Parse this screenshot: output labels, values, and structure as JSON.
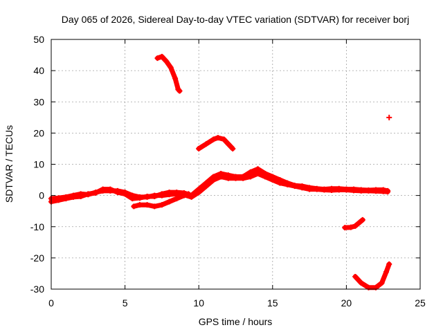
{
  "chart_data": {
    "type": "scatter",
    "title": "Day 065 of 2026, Sidereal Day-to-day VTEC variation (SDTVAR) for receiver borj",
    "xlabel": "GPS time / hours",
    "ylabel": "SDTVAR / TECUs",
    "xlim": [
      0,
      25
    ],
    "ylim": [
      -30,
      50
    ],
    "xticks": [
      "0",
      "5",
      "10",
      "15",
      "20",
      "25"
    ],
    "yticks": [
      "-30",
      "-20",
      "-10",
      "0",
      "10",
      "20",
      "30",
      "40",
      "50"
    ],
    "grid": true,
    "marker_color": "#ff0000",
    "marker": "plus",
    "series": [
      {
        "name": "main-band-a",
        "points": [
          [
            0,
            -1
          ],
          [
            0.5,
            -0.8
          ],
          [
            1,
            -0.5
          ],
          [
            1.5,
            0
          ],
          [
            2,
            0.5
          ],
          [
            2.5,
            0.3
          ],
          [
            3,
            1
          ],
          [
            3.5,
            1.5
          ],
          [
            4,
            1.5
          ],
          [
            4.5,
            1.5
          ],
          [
            5,
            1
          ],
          [
            5.5,
            0
          ],
          [
            6,
            -0.5
          ],
          [
            6.5,
            -0.5
          ],
          [
            7,
            0
          ],
          [
            7.5,
            0
          ],
          [
            8,
            0.3
          ],
          [
            8.5,
            0.5
          ],
          [
            9,
            0.2
          ],
          [
            9.5,
            -0.5
          ],
          [
            10,
            1
          ],
          [
            10.5,
            3
          ],
          [
            11,
            5
          ],
          [
            11.5,
            6
          ],
          [
            12,
            5.5
          ],
          [
            12.5,
            5.5
          ],
          [
            13,
            5.5
          ],
          [
            13.5,
            6
          ],
          [
            14,
            7
          ],
          [
            14.5,
            6
          ],
          [
            15,
            5
          ],
          [
            15.5,
            4
          ],
          [
            16,
            3.5
          ],
          [
            16.5,
            3
          ],
          [
            17,
            2.5
          ],
          [
            17.5,
            2
          ],
          [
            18,
            2
          ],
          [
            18.5,
            1.8
          ],
          [
            19,
            1.7
          ],
          [
            19.5,
            1.8
          ],
          [
            20,
            1.8
          ],
          [
            20.5,
            1.6
          ],
          [
            21,
            1.5
          ],
          [
            21.5,
            1.5
          ],
          [
            22,
            1.4
          ],
          [
            22.5,
            1.3
          ],
          [
            22.8,
            1.2
          ]
        ]
      },
      {
        "name": "main-band-b",
        "points": [
          [
            0,
            -2
          ],
          [
            0.5,
            -1.5
          ],
          [
            1,
            -1
          ],
          [
            1.5,
            -0.5
          ],
          [
            2,
            -0.3
          ],
          [
            2.5,
            0.5
          ],
          [
            3,
            0.8
          ],
          [
            3.5,
            2
          ],
          [
            4,
            2
          ],
          [
            4.5,
            1
          ],
          [
            5,
            0.5
          ],
          [
            5.5,
            -1
          ],
          [
            6,
            -0.8
          ],
          [
            6.5,
            -0.3
          ],
          [
            7,
            -0.3
          ],
          [
            7.5,
            0.5
          ],
          [
            8,
            1
          ],
          [
            8.5,
            1
          ],
          [
            9,
            0.8
          ],
          [
            9.5,
            0
          ],
          [
            10,
            2
          ],
          [
            10.5,
            4
          ],
          [
            11,
            6
          ],
          [
            11.5,
            7
          ],
          [
            12,
            6.5
          ],
          [
            12.5,
            6
          ],
          [
            13,
            6
          ],
          [
            13.5,
            7.5
          ],
          [
            14,
            8.5
          ],
          [
            14.5,
            7
          ],
          [
            15,
            6
          ],
          [
            15.5,
            5
          ],
          [
            16,
            4
          ],
          [
            16.5,
            3.2
          ],
          [
            17,
            3
          ],
          [
            17.5,
            2.5
          ],
          [
            18,
            2.2
          ],
          [
            18.5,
            2
          ],
          [
            19,
            2.2
          ],
          [
            19.5,
            2.2
          ],
          [
            20,
            2
          ],
          [
            20.5,
            2
          ],
          [
            21,
            1.8
          ],
          [
            21.5,
            1.7
          ],
          [
            22,
            1.8
          ],
          [
            22.5,
            1.8
          ],
          [
            22.8,
            1.5
          ]
        ]
      },
      {
        "name": "dip-arc",
        "points": [
          [
            5.6,
            -3.5
          ],
          [
            6,
            -3
          ],
          [
            6.5,
            -3
          ],
          [
            7,
            -3.5
          ],
          [
            7.5,
            -3
          ],
          [
            8,
            -2
          ],
          [
            8.5,
            -1
          ],
          [
            9,
            0
          ],
          [
            9.3,
            0.5
          ]
        ]
      },
      {
        "name": "high-arc",
        "points": [
          [
            7.2,
            44
          ],
          [
            7.5,
            44.5
          ],
          [
            7.8,
            43
          ],
          [
            8.1,
            41
          ],
          [
            8.4,
            37.5
          ],
          [
            8.6,
            34
          ],
          [
            8.7,
            33.5
          ]
        ]
      },
      {
        "name": "mid-arc",
        "points": [
          [
            10,
            15
          ],
          [
            10.5,
            16.5
          ],
          [
            11,
            18
          ],
          [
            11.3,
            18.5
          ],
          [
            11.7,
            18
          ],
          [
            12,
            16.5
          ],
          [
            12.3,
            15
          ]
        ]
      },
      {
        "name": "neg-short",
        "points": [
          [
            19.9,
            -10.3
          ],
          [
            20.3,
            -10.2
          ],
          [
            20.6,
            -9.8
          ],
          [
            20.9,
            -8.6
          ],
          [
            21.1,
            -7.8
          ]
        ]
      },
      {
        "name": "low-arc",
        "points": [
          [
            20.6,
            -26
          ],
          [
            21,
            -28
          ],
          [
            21.5,
            -29.5
          ],
          [
            22,
            -29.5
          ],
          [
            22.4,
            -28
          ],
          [
            22.7,
            -24.5
          ],
          [
            22.9,
            -22
          ]
        ]
      },
      {
        "name": "outlier",
        "points": [
          [
            22.9,
            25
          ]
        ]
      }
    ]
  }
}
